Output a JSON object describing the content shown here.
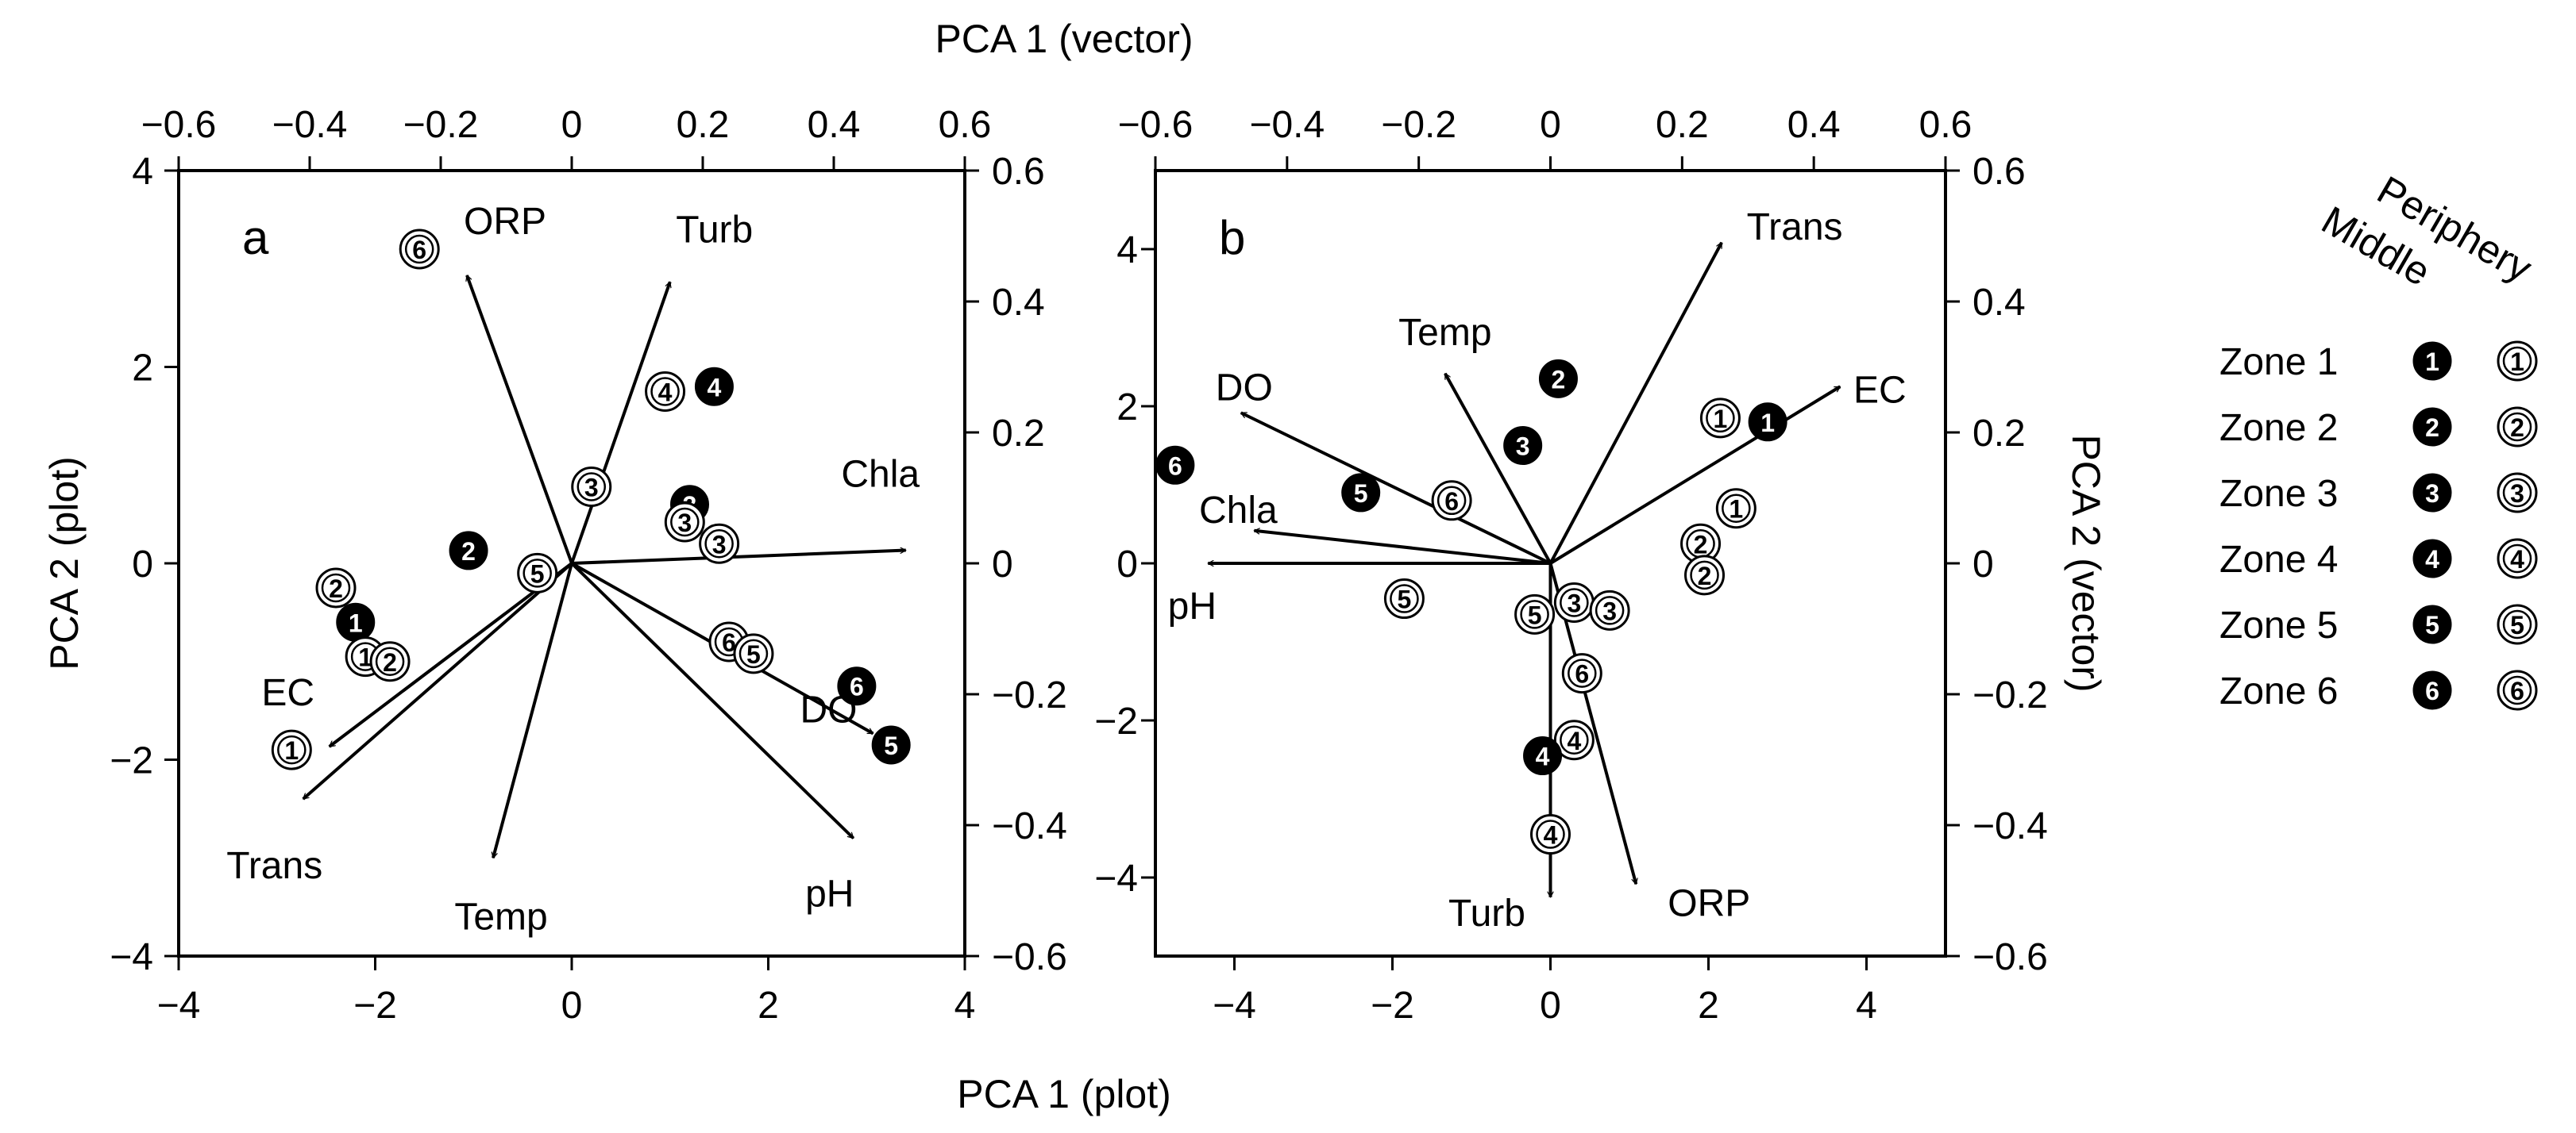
{
  "labels": {
    "top_axis": "PCA 1 (vector)",
    "bottom_axis": "PCA 1 (plot)",
    "left_axis": "PCA 2 (plot)",
    "right_axis": "PCA 2 (vector)"
  },
  "legend": {
    "col_middle": "Middle",
    "col_periphery": "Periphery",
    "zones": [
      "Zone 1",
      "Zone 2",
      "Zone 3",
      "Zone 4",
      "Zone 5",
      "Zone 6"
    ]
  },
  "chart_data": [
    {
      "type": "scatter",
      "panel": "a",
      "xlabel": "PCA 1 (plot)",
      "ylabel": "PCA 2 (plot)",
      "x2label": "PCA 1 (vector)",
      "y2label": "PCA 2 (vector)",
      "xlim": [
        -4,
        4
      ],
      "ylim": [
        -4,
        4
      ],
      "x2lim": [
        -0.6,
        0.6
      ],
      "y2lim": [
        -0.6,
        0.6
      ],
      "xticks": [
        "−4",
        "−2",
        "0",
        "2",
        "4"
      ],
      "yticks": [
        "−4",
        "−2",
        "0",
        "2",
        "4"
      ],
      "x2ticks": [
        "−0.6",
        "−0.4",
        "−0.2",
        "0",
        "0.2",
        "0.4",
        "0.6"
      ],
      "y2ticks": [
        "−0.6",
        "−0.4",
        "−0.2",
        "0",
        "0.2",
        "0.4",
        "0.6"
      ],
      "vectors": [
        {
          "name": "ORP",
          "x": -0.16,
          "y": 0.44
        },
        {
          "name": "Turb",
          "x": 0.15,
          "y": 0.43
        },
        {
          "name": "Chla",
          "x": 0.51,
          "y": 0.02
        },
        {
          "name": "DO",
          "x": 0.46,
          "y": -0.26
        },
        {
          "name": "pH",
          "x": 0.43,
          "y": -0.42
        },
        {
          "name": "Temp",
          "x": -0.12,
          "y": -0.45
        },
        {
          "name": "EC",
          "x": -0.37,
          "y": -0.28
        },
        {
          "name": "Trans",
          "x": -0.41,
          "y": -0.36
        }
      ],
      "points": [
        {
          "zone": "6",
          "group": "Periphery",
          "x": -1.55,
          "y": 3.2
        },
        {
          "zone": "4",
          "group": "Periphery",
          "x": 0.95,
          "y": 1.75
        },
        {
          "zone": "4",
          "group": "Middle",
          "x": 1.45,
          "y": 1.8
        },
        {
          "zone": "3",
          "group": "Periphery",
          "x": 0.2,
          "y": 0.78
        },
        {
          "zone": "3",
          "group": "Middle",
          "x": 1.2,
          "y": 0.6
        },
        {
          "zone": "3",
          "group": "Periphery",
          "x": 1.15,
          "y": 0.42
        },
        {
          "zone": "3",
          "group": "Periphery",
          "x": 1.5,
          "y": 0.2
        },
        {
          "zone": "2",
          "group": "Middle",
          "x": -1.05,
          "y": 0.13
        },
        {
          "zone": "5",
          "group": "Periphery",
          "x": -0.35,
          "y": -0.1
        },
        {
          "zone": "2",
          "group": "Periphery",
          "x": -2.4,
          "y": -0.25
        },
        {
          "zone": "1",
          "group": "Middle",
          "x": -2.2,
          "y": -0.6
        },
        {
          "zone": "1",
          "group": "Periphery",
          "x": -2.1,
          "y": -0.95
        },
        {
          "zone": "2",
          "group": "Periphery",
          "x": -1.85,
          "y": -1.0
        },
        {
          "zone": "6",
          "group": "Periphery",
          "x": 1.6,
          "y": -0.8
        },
        {
          "zone": "5",
          "group": "Periphery",
          "x": 1.85,
          "y": -0.92
        },
        {
          "zone": "6",
          "group": "Middle",
          "x": 2.9,
          "y": -1.25
        },
        {
          "zone": "5",
          "group": "Middle",
          "x": 3.25,
          "y": -1.85
        },
        {
          "zone": "1",
          "group": "Periphery",
          "x": -2.85,
          "y": -1.9
        }
      ]
    },
    {
      "type": "scatter",
      "panel": "b",
      "xlabel": "PCA 1 (plot)",
      "ylabel": "PCA 2 (plot)",
      "x2label": "PCA 1 (vector)",
      "y2label": "PCA 2 (vector)",
      "xlim": [
        -5,
        5
      ],
      "ylim": [
        -5,
        5
      ],
      "x2lim": [
        -0.6,
        0.6
      ],
      "y2lim": [
        -0.6,
        0.6
      ],
      "xticks": [
        "−4",
        "−2",
        "0",
        "2",
        "4"
      ],
      "yticks": [
        "−4",
        "−2",
        "0",
        "2",
        "4"
      ],
      "x2ticks": [
        "−0.6",
        "−0.4",
        "−0.2",
        "0",
        "0.2",
        "0.4",
        "0.6"
      ],
      "y2ticks": [
        "−0.6",
        "−0.4",
        "−0.2",
        "0",
        "0.2",
        "0.4",
        "0.6"
      ],
      "vectors": [
        {
          "name": "Trans",
          "x": 0.26,
          "y": 0.49
        },
        {
          "name": "EC",
          "x": 0.44,
          "y": 0.27
        },
        {
          "name": "Temp",
          "x": -0.16,
          "y": 0.29
        },
        {
          "name": "DO",
          "x": -0.47,
          "y": 0.23
        },
        {
          "name": "Chla",
          "x": -0.45,
          "y": 0.05
        },
        {
          "name": "pH",
          "x": -0.52,
          "y": 0.0
        },
        {
          "name": "Turb",
          "x": 0.0,
          "y": -0.51
        },
        {
          "name": "ORP",
          "x": 0.13,
          "y": -0.49
        }
      ],
      "points": [
        {
          "zone": "2",
          "group": "Middle",
          "x": 0.1,
          "y": 2.35
        },
        {
          "zone": "3",
          "group": "Middle",
          "x": -0.35,
          "y": 1.5
        },
        {
          "zone": "6",
          "group": "Middle",
          "x": -4.75,
          "y": 1.25
        },
        {
          "zone": "5",
          "group": "Middle",
          "x": -2.4,
          "y": 0.9
        },
        {
          "zone": "6",
          "group": "Periphery",
          "x": -1.25,
          "y": 0.8
        },
        {
          "zone": "1",
          "group": "Periphery",
          "x": 2.15,
          "y": 1.85
        },
        {
          "zone": "1",
          "group": "Middle",
          "x": 2.75,
          "y": 1.8
        },
        {
          "zone": "1",
          "group": "Periphery",
          "x": 2.35,
          "y": 0.7
        },
        {
          "zone": "2",
          "group": "Periphery",
          "x": 1.9,
          "y": 0.25
        },
        {
          "zone": "2",
          "group": "Periphery",
          "x": 1.95,
          "y": -0.15
        },
        {
          "zone": "5",
          "group": "Periphery",
          "x": -1.85,
          "y": -0.45
        },
        {
          "zone": "3",
          "group": "Periphery",
          "x": 0.3,
          "y": -0.5
        },
        {
          "zone": "3",
          "group": "Periphery",
          "x": 0.75,
          "y": -0.6
        },
        {
          "zone": "5",
          "group": "Periphery",
          "x": -0.2,
          "y": -0.65
        },
        {
          "zone": "6",
          "group": "Periphery",
          "x": 0.4,
          "y": -1.4
        },
        {
          "zone": "4",
          "group": "Periphery",
          "x": 0.3,
          "y": -2.25
        },
        {
          "zone": "4",
          "group": "Middle",
          "x": -0.1,
          "y": -2.45
        },
        {
          "zone": "4",
          "group": "Periphery",
          "x": 0.0,
          "y": -3.45
        }
      ]
    }
  ]
}
